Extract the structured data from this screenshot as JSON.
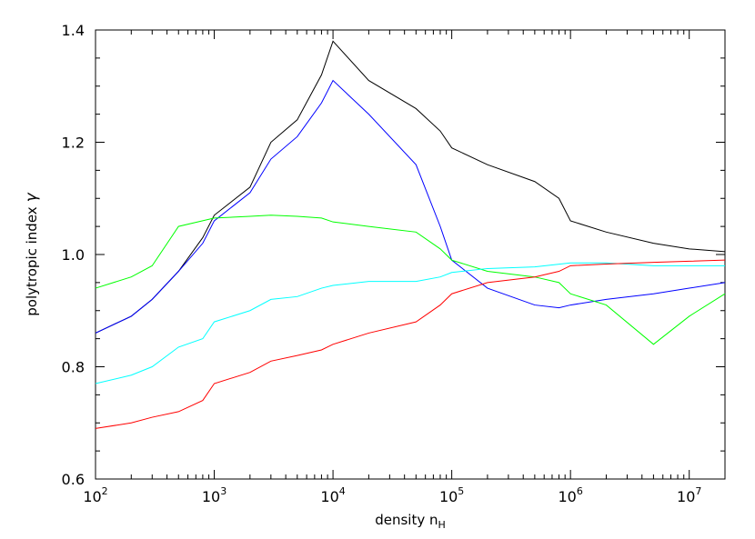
{
  "chart_data": {
    "type": "line",
    "xlabel": "density n",
    "xlabel_sub": "H",
    "ylabel": "polytropic index",
    "ylabel_symbol": "γ",
    "xscale": "log",
    "xlim": [
      100,
      20000000
    ],
    "ylim": [
      0.6,
      1.4
    ],
    "grid": false,
    "legend": "none",
    "x_ticks": [
      {
        "base": "10",
        "exp": "2"
      },
      {
        "base": "10",
        "exp": "3"
      },
      {
        "base": "10",
        "exp": "4"
      },
      {
        "base": "10",
        "exp": "5"
      },
      {
        "base": "10",
        "exp": "6"
      },
      {
        "base": "10",
        "exp": "7"
      }
    ],
    "y_ticks": [
      "0.6",
      "0.8",
      "1.0",
      "1.2",
      "1.4"
    ],
    "series": [
      {
        "color": "#000000",
        "points": [
          [
            100,
            0.86
          ],
          [
            200,
            0.89
          ],
          [
            300,
            0.92
          ],
          [
            500,
            0.97
          ],
          [
            800,
            1.03
          ],
          [
            1000,
            1.07
          ],
          [
            2000,
            1.12
          ],
          [
            3000,
            1.2
          ],
          [
            5000,
            1.24
          ],
          [
            8000,
            1.32
          ],
          [
            10000,
            1.38
          ],
          [
            20000,
            1.31
          ],
          [
            50000,
            1.26
          ],
          [
            80000,
            1.22
          ],
          [
            100000,
            1.19
          ],
          [
            200000,
            1.16
          ],
          [
            500000,
            1.13
          ],
          [
            800000,
            1.1
          ],
          [
            1000000,
            1.06
          ],
          [
            2000000,
            1.04
          ],
          [
            5000000,
            1.02
          ],
          [
            10000000,
            1.01
          ],
          [
            20000000,
            1.005
          ]
        ]
      },
      {
        "color": "#0000ff",
        "points": [
          [
            100,
            0.86
          ],
          [
            200,
            0.89
          ],
          [
            300,
            0.92
          ],
          [
            500,
            0.97
          ],
          [
            800,
            1.02
          ],
          [
            1000,
            1.06
          ],
          [
            2000,
            1.11
          ],
          [
            3000,
            1.17
          ],
          [
            5000,
            1.21
          ],
          [
            8000,
            1.27
          ],
          [
            10000,
            1.31
          ],
          [
            20000,
            1.25
          ],
          [
            50000,
            1.16
          ],
          [
            80000,
            1.05
          ],
          [
            100000,
            0.99
          ],
          [
            200000,
            0.94
          ],
          [
            500000,
            0.91
          ],
          [
            800000,
            0.905
          ],
          [
            1000000,
            0.91
          ],
          [
            2000000,
            0.92
          ],
          [
            5000000,
            0.93
          ],
          [
            10000000,
            0.94
          ],
          [
            20000000,
            0.95
          ]
        ]
      },
      {
        "color": "#00ff00",
        "points": [
          [
            100,
            0.94
          ],
          [
            200,
            0.96
          ],
          [
            300,
            0.98
          ],
          [
            500,
            1.05
          ],
          [
            1000,
            1.065
          ],
          [
            2000,
            1.068
          ],
          [
            3000,
            1.07
          ],
          [
            5000,
            1.068
          ],
          [
            8000,
            1.065
          ],
          [
            10000,
            1.058
          ],
          [
            20000,
            1.05
          ],
          [
            50000,
            1.04
          ],
          [
            80000,
            1.01
          ],
          [
            100000,
            0.99
          ],
          [
            200000,
            0.97
          ],
          [
            500000,
            0.96
          ],
          [
            800000,
            0.95
          ],
          [
            1000000,
            0.93
          ],
          [
            2000000,
            0.91
          ],
          [
            5000000,
            0.84
          ],
          [
            10000000,
            0.89
          ],
          [
            20000000,
            0.93
          ]
        ]
      },
      {
        "color": "#00ffff",
        "points": [
          [
            100,
            0.77
          ],
          [
            200,
            0.785
          ],
          [
            300,
            0.8
          ],
          [
            500,
            0.835
          ],
          [
            800,
            0.85
          ],
          [
            1000,
            0.88
          ],
          [
            2000,
            0.9
          ],
          [
            3000,
            0.92
          ],
          [
            5000,
            0.925
          ],
          [
            8000,
            0.94
          ],
          [
            10000,
            0.945
          ],
          [
            20000,
            0.952
          ],
          [
            50000,
            0.952
          ],
          [
            80000,
            0.96
          ],
          [
            100000,
            0.968
          ],
          [
            200000,
            0.975
          ],
          [
            500000,
            0.978
          ],
          [
            1000000,
            0.985
          ],
          [
            2000000,
            0.985
          ],
          [
            5000000,
            0.98
          ],
          [
            10000000,
            0.98
          ],
          [
            20000000,
            0.98
          ]
        ]
      },
      {
        "color": "#ff0000",
        "points": [
          [
            100,
            0.69
          ],
          [
            200,
            0.7
          ],
          [
            300,
            0.71
          ],
          [
            500,
            0.72
          ],
          [
            800,
            0.74
          ],
          [
            1000,
            0.77
          ],
          [
            2000,
            0.79
          ],
          [
            3000,
            0.81
          ],
          [
            5000,
            0.82
          ],
          [
            8000,
            0.83
          ],
          [
            10000,
            0.84
          ],
          [
            20000,
            0.86
          ],
          [
            50000,
            0.88
          ],
          [
            80000,
            0.91
          ],
          [
            100000,
            0.93
          ],
          [
            200000,
            0.95
          ],
          [
            500000,
            0.96
          ],
          [
            800000,
            0.97
          ],
          [
            1000000,
            0.98
          ],
          [
            2000000,
            0.983
          ],
          [
            5000000,
            0.986
          ],
          [
            10000000,
            0.988
          ],
          [
            20000000,
            0.99
          ]
        ]
      }
    ]
  }
}
